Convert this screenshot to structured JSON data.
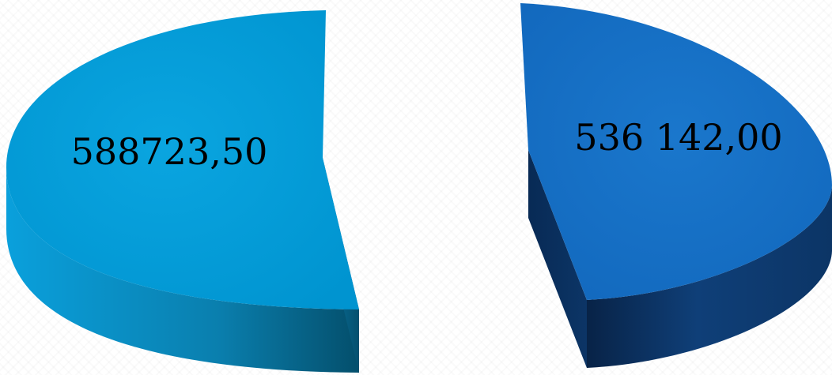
{
  "chart_data": {
    "type": "pie",
    "style": "3d-exploded",
    "title": "",
    "values": [
      588723.5,
      536142.0
    ],
    "labels": [
      "588723,50",
      "536 142,00"
    ],
    "colors": {
      "slice_1_top": "#0099d6",
      "slice_1_side": "#0a7fae",
      "slice_1_side_dark": "#044f6c",
      "slice_2_top": "#126cc2",
      "slice_2_side": "#0f3f78",
      "slice_2_side_dark": "#082347"
    },
    "legend": "none",
    "grid": false
  }
}
